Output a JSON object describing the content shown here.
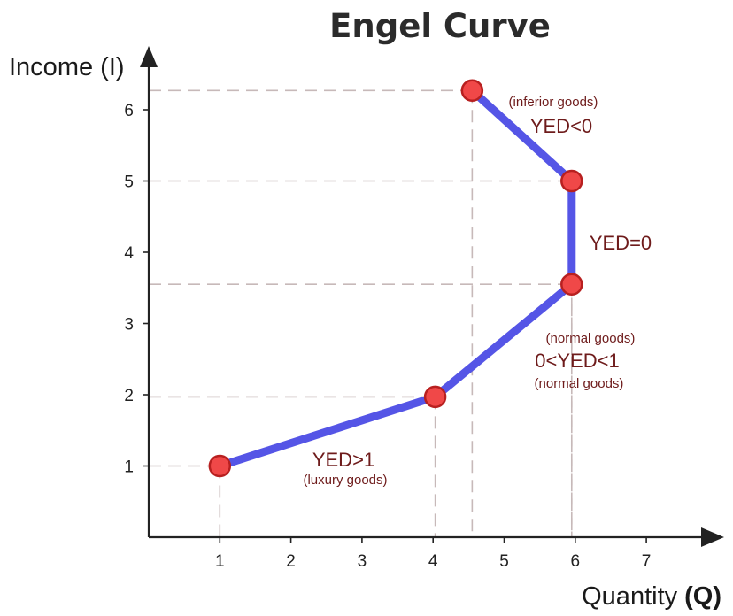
{
  "chart_data": {
    "type": "line",
    "title": "Engel Curve",
    "xlabel_main": "Quantity",
    "xlabel_symbol": "(Q)",
    "ylabel": "Income (I)",
    "xlim": [
      0,
      8
    ],
    "ylim": [
      0,
      7
    ],
    "xticks": [
      1,
      2,
      3,
      4,
      5,
      6,
      7
    ],
    "yticks": [
      1,
      2,
      3,
      4,
      5,
      6
    ],
    "grid": false,
    "series": [
      {
        "points": [
          {
            "x": 1,
            "y": 1
          },
          {
            "x": 4.03,
            "y": 1.97
          },
          {
            "x": 5.95,
            "y": 3.55
          },
          {
            "x": 5.95,
            "y": 5.0
          },
          {
            "x": 4.55,
            "y": 6.27
          }
        ]
      }
    ],
    "colors": {
      "line": "#5555e6",
      "marker_fill": "#f04848",
      "marker_stroke": "#b82020",
      "guide": "#c7b9b9",
      "annotation": "#6e1b1b",
      "axis": "#222222"
    },
    "annotations": {
      "inferior_note": "(inferior goods)",
      "inferior_label": "YED<0",
      "zero_label": "YED=0",
      "normal_note_top": "(normal goods)",
      "normal_label": "0<YED<1",
      "normal_note_bottom": "(normal goods)",
      "luxury_label": "YED>1",
      "luxury_note": "(luxury goods)"
    }
  }
}
